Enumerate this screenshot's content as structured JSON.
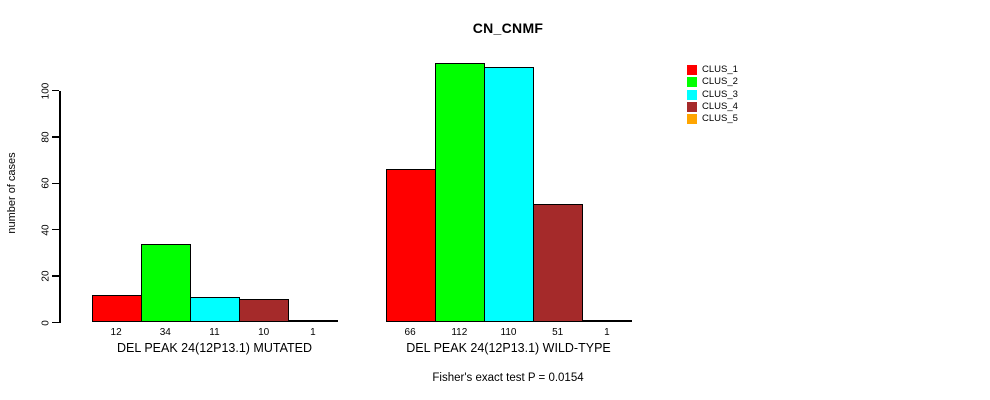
{
  "page": {
    "background": "#ffffff"
  },
  "chart_data": {
    "type": "bar",
    "title": "CN_CNMF",
    "ylabel": "number of cases",
    "xlabel": "",
    "ylim": [
      0,
      116
    ],
    "yticks": [
      0,
      20,
      40,
      60,
      80,
      100
    ],
    "grid": false,
    "legend_position": "right",
    "bar_border_color": "#000000",
    "categories": [
      "DEL PEAK 24(12P13.1) MUTATED",
      "DEL PEAK 24(12P13.1) WILD-TYPE"
    ],
    "series": [
      {
        "name": "CLUS_1",
        "color": "#ff0000",
        "values": [
          12,
          66
        ]
      },
      {
        "name": "CLUS_2",
        "color": "#00ff00",
        "values": [
          34,
          112
        ]
      },
      {
        "name": "CLUS_3",
        "color": "#00ffff",
        "values": [
          11,
          110
        ]
      },
      {
        "name": "CLUS_4",
        "color": "#a52a2a",
        "values": [
          10,
          51
        ]
      },
      {
        "name": "CLUS_5",
        "color": "#ffa500",
        "values": [
          1,
          1
        ]
      }
    ],
    "footnote": "Fisher's exact test P = 0.0154"
  }
}
